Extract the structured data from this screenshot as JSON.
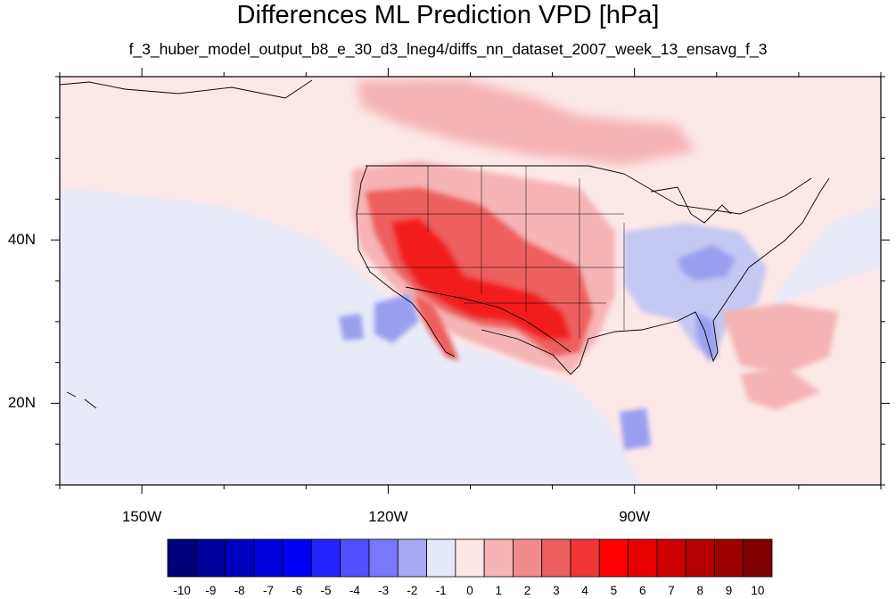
{
  "title": "Differences ML Prediction VPD [hPa]",
  "subtitle": "f_3_huber_model_output_b8_e_30_d3_lneg4/diffs_nn_dataset_2007_week_13_ensavg_f_3",
  "map": {
    "lon_range": [
      -160,
      -60
    ],
    "lat_range": [
      10,
      60
    ],
    "lon_ticks": [
      {
        "value": -150,
        "label": "150W"
      },
      {
        "value": -120,
        "label": "120W"
      },
      {
        "value": -90,
        "label": "90W"
      }
    ],
    "lat_ticks": [
      {
        "value": 40,
        "label": "40N"
      },
      {
        "value": 20,
        "label": "20N"
      }
    ]
  },
  "colorbar": {
    "labels": [
      "-10",
      "-9",
      "-8",
      "-7",
      "-6",
      "-5",
      "-4",
      "-3",
      "-2",
      "-1",
      "0",
      "1",
      "2",
      "3",
      "4",
      "5",
      "6",
      "7",
      "8",
      "9",
      "10"
    ],
    "colors": [
      "#00007a",
      "#00009f",
      "#0000c0",
      "#0000dc",
      "#0000f5",
      "#2323ff",
      "#5050ff",
      "#7878ff",
      "#a8a8f5",
      "#e5e8fb",
      "#fde6e6",
      "#f6b4b4",
      "#f28c8c",
      "#ee5f5f",
      "#f23535",
      "#ff0000",
      "#e80000",
      "#d00000",
      "#b40000",
      "#9c0000",
      "#7e0000"
    ]
  },
  "colors": {
    "ocean": "#e8eaf8",
    "weak_positive": "#fde8e8",
    "moderate_positive": "#f6b4b4",
    "strong_positive": "#ee5f5f",
    "very_strong_positive": "#f21a1a",
    "weak_negative": "#c4c8f2",
    "moderate_negative": "#9a9ff0"
  }
}
